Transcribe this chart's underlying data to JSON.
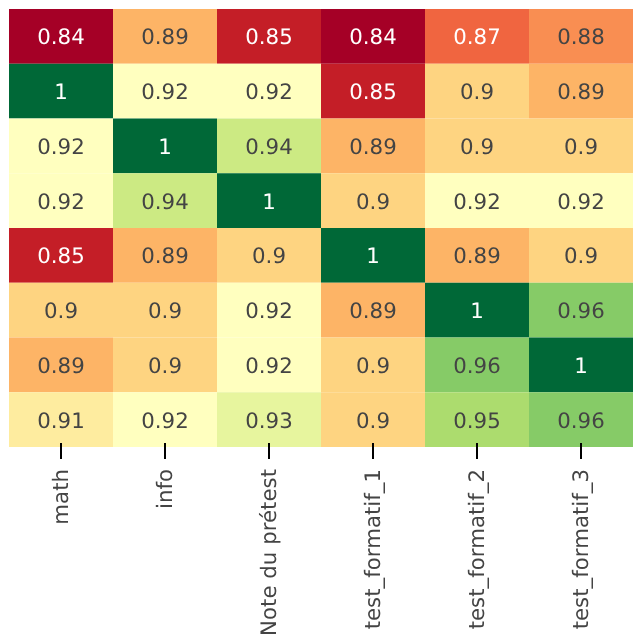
{
  "chart_data": {
    "type": "heatmap",
    "categories": [
      "math",
      "info",
      "Note du prétest",
      "test_formatif_1",
      "test_formatif_2",
      "test_formatif_3"
    ],
    "y_categories": [
      null,
      null,
      null,
      null,
      null,
      null,
      null,
      null
    ],
    "cells": [
      [
        0.84,
        0.89,
        0.85,
        0.84,
        0.87,
        0.88
      ],
      [
        1,
        0.92,
        0.92,
        0.85,
        0.9,
        0.89
      ],
      [
        0.92,
        1,
        0.94,
        0.89,
        0.9,
        0.9
      ],
      [
        0.92,
        0.94,
        1,
        0.9,
        0.92,
        0.92
      ],
      [
        0.85,
        0.89,
        0.9,
        1,
        0.89,
        0.9
      ],
      [
        0.9,
        0.9,
        0.92,
        0.89,
        1,
        0.96
      ],
      [
        0.89,
        0.9,
        0.92,
        0.9,
        0.96,
        1
      ],
      [
        0.91,
        0.92,
        0.93,
        0.9,
        0.95,
        0.96
      ]
    ],
    "data_labels": true
  }
}
